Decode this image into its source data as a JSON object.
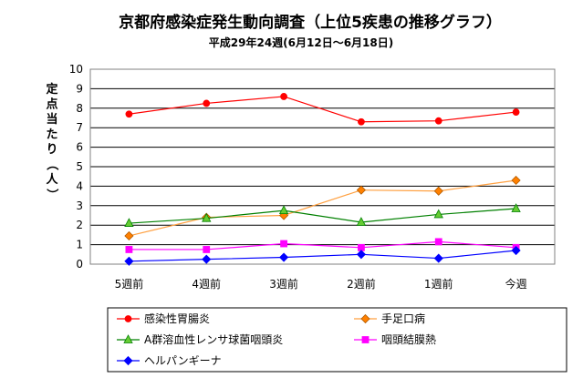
{
  "chart_data": {
    "type": "line",
    "title": "京都府感染症発生動向調査（上位5疾患の推移グラフ）",
    "subtitle": "平成29年24週(6月12日〜6月18日)",
    "ylabel": "定点当たり（人）",
    "xlabel": "",
    "categories": [
      "5週前",
      "4週前",
      "3週前",
      "2週前",
      "1週前",
      "今週"
    ],
    "ylim": [
      0,
      10
    ],
    "yticks": [
      "0",
      "1",
      "2",
      "3",
      "4",
      "5",
      "6",
      "7",
      "8",
      "9",
      "10"
    ],
    "grid": true,
    "legend_position": "bottom",
    "series": [
      {
        "name": "感染性胃腸炎",
        "values": [
          7.7,
          8.25,
          8.6,
          7.3,
          7.35,
          7.8
        ],
        "color": "#ff0000",
        "marker": "circle",
        "marker_fill": "#ff0000"
      },
      {
        "name": "手足口病",
        "values": [
          1.45,
          2.4,
          2.5,
          3.8,
          3.75,
          4.3
        ],
        "color": "#ffa040",
        "marker": "diamond",
        "marker_fill": "#ff8000"
      },
      {
        "name": "A群溶血性レンサ球菌咽頭炎",
        "values": [
          2.1,
          2.35,
          2.75,
          2.15,
          2.55,
          2.85
        ],
        "color": "#008000",
        "marker": "triangle",
        "marker_fill": "#66cc33"
      },
      {
        "name": "咽頭結膜熱",
        "values": [
          0.75,
          0.75,
          1.05,
          0.85,
          1.15,
          0.85
        ],
        "color": "#ff00ff",
        "marker": "square",
        "marker_fill": "#ff00ff"
      },
      {
        "name": "ヘルパンギーナ",
        "values": [
          0.15,
          0.25,
          0.35,
          0.5,
          0.3,
          0.7
        ],
        "color": "#0000ff",
        "marker": "diamond",
        "marker_fill": "#0000ff"
      }
    ]
  }
}
